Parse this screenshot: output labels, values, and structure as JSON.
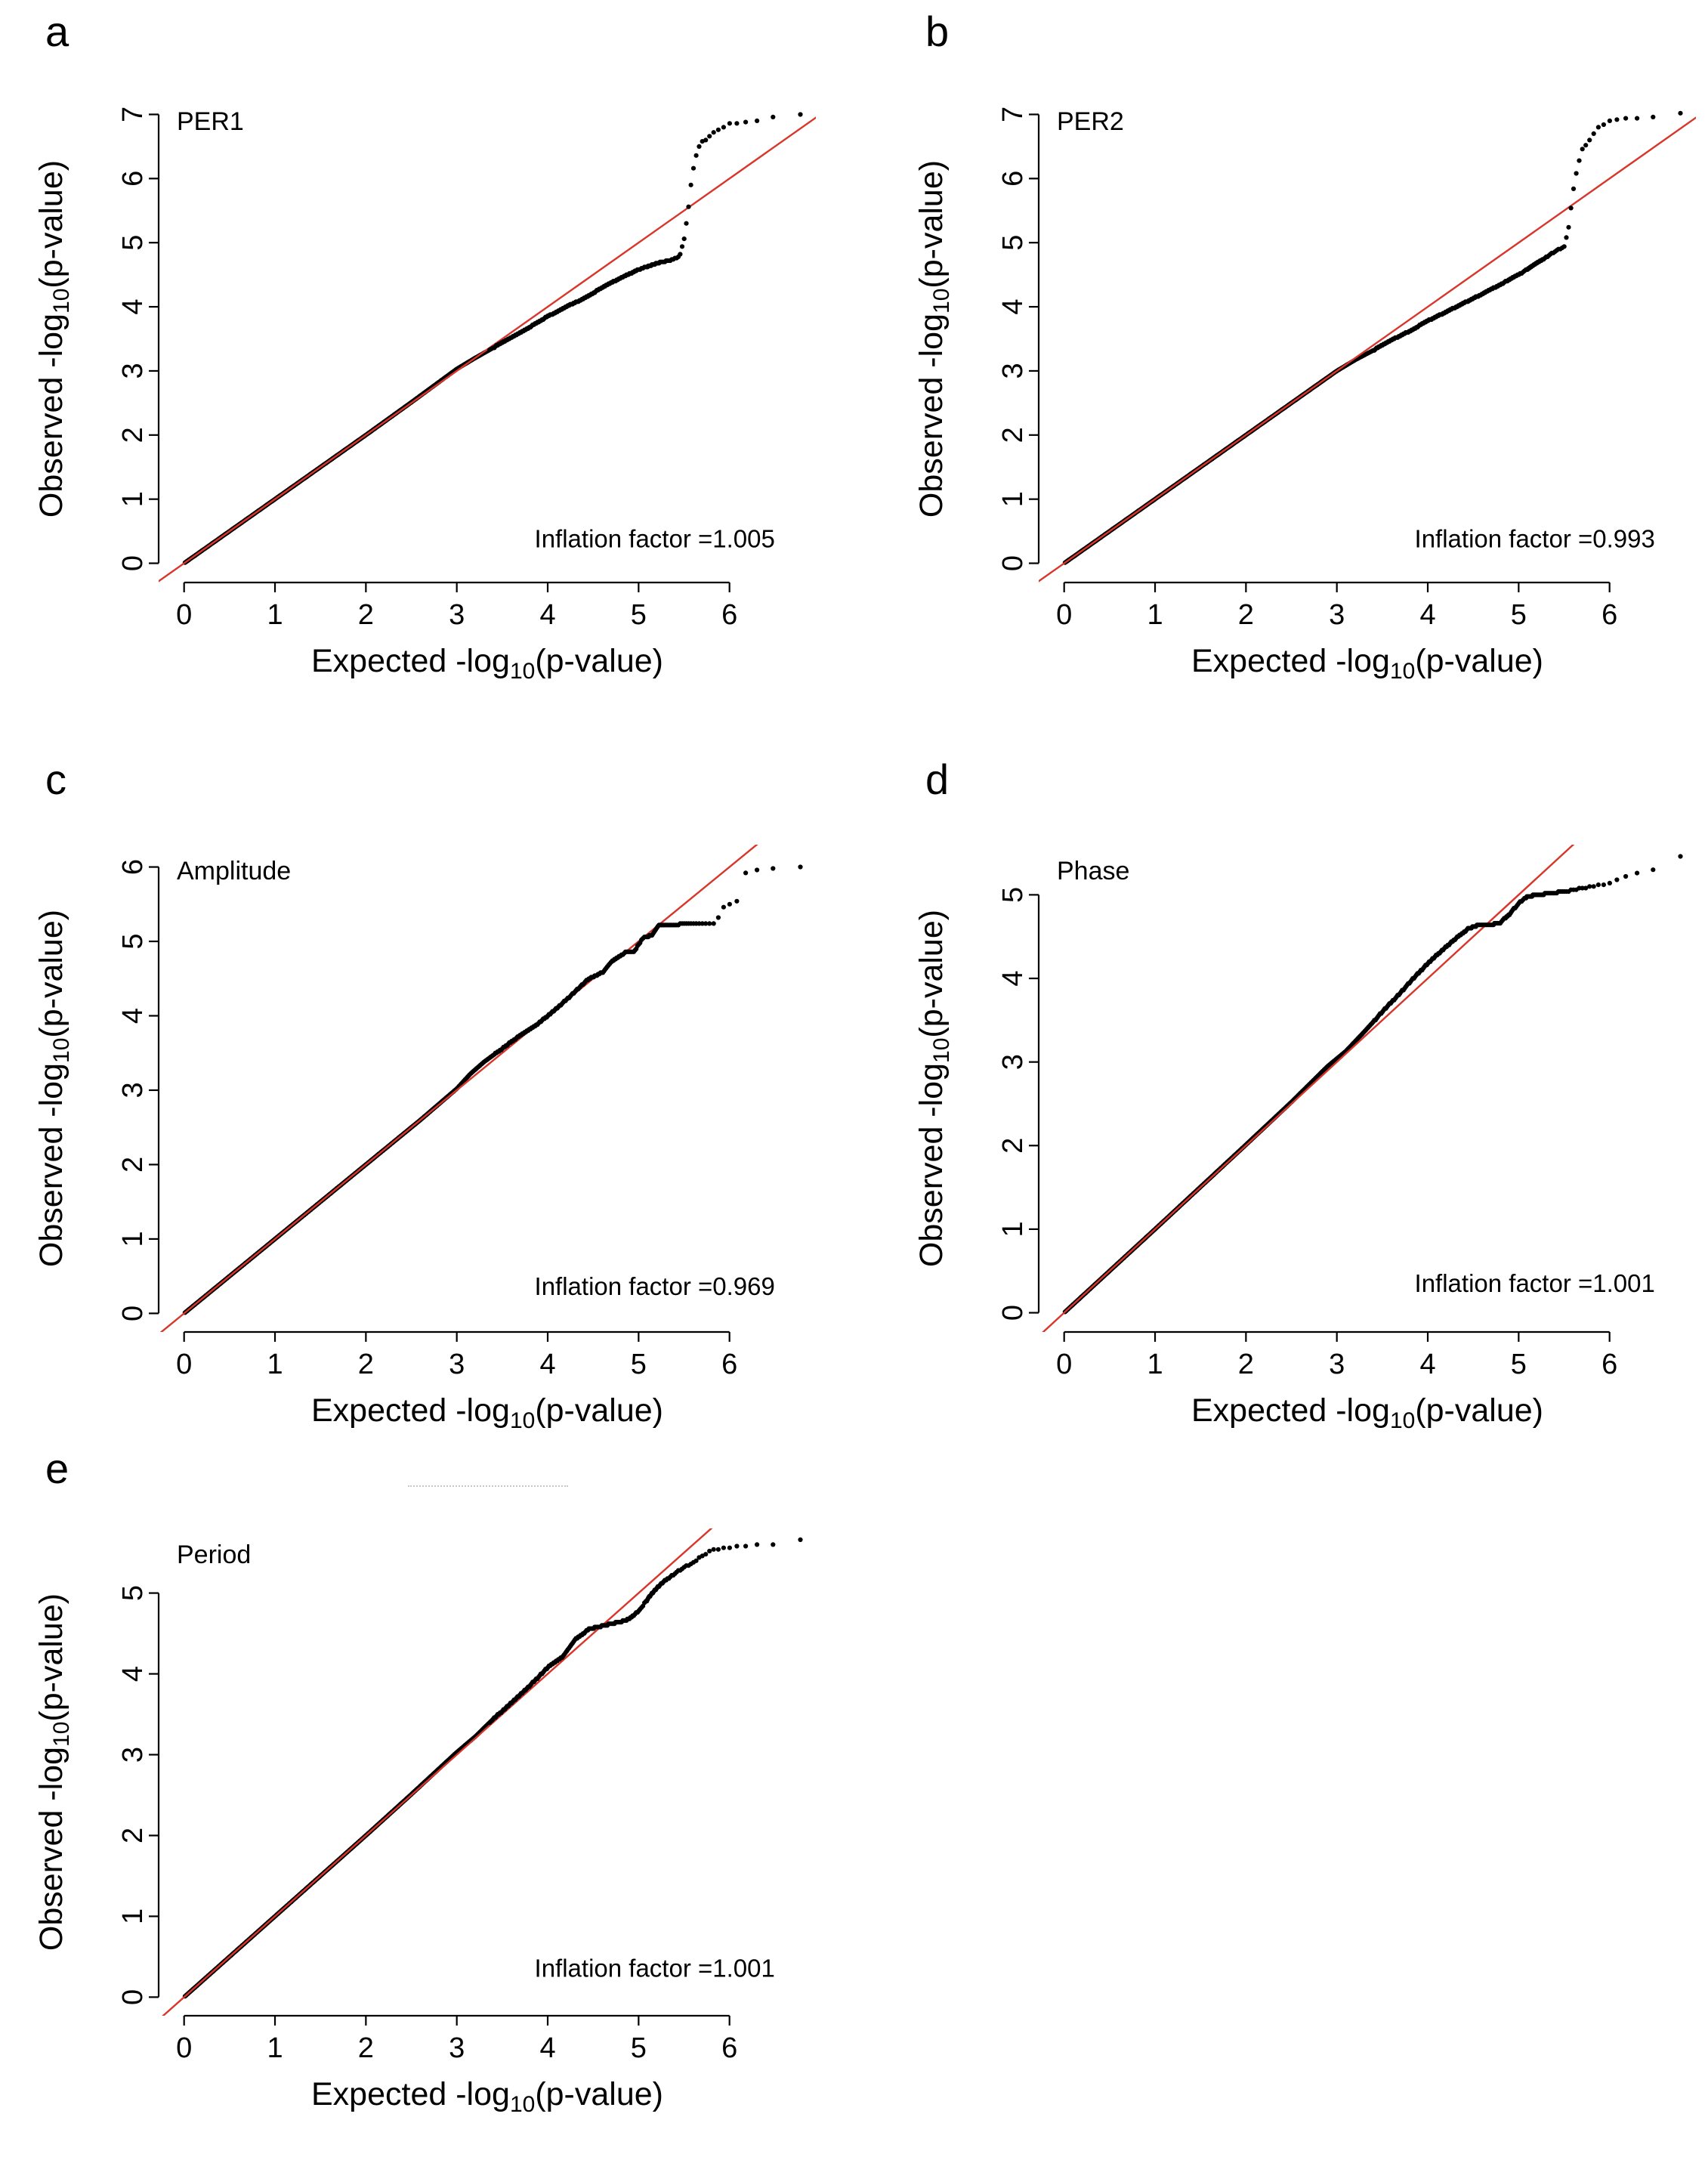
{
  "figure": {
    "background": "#ffffff",
    "identity_line_color": "#d8362a",
    "point_color": "#000000",
    "axis_color": "#000000"
  },
  "labels": {
    "xlabel": {
      "pre": "Expected -log",
      "sub": "10",
      "post": "(p-value)",
      "plain": "Expected -log10(p-value)"
    },
    "ylabel": {
      "pre": "Observed -log",
      "sub": "10",
      "post": "(p-value)",
      "plain": "Observed -log10(p-value)"
    }
  },
  "chart_data": [
    {
      "id": "a",
      "type": "scatter",
      "panel_letter": "a",
      "title": "PER1",
      "inflation_label": "Inflation factor =1.005",
      "xlabel": "Expected -log10(p-value)",
      "ylabel": "Observed -log10(p-value)",
      "grid": false,
      "legend": "none",
      "xlim": [
        -0.28,
        6.95
      ],
      "ylim": [
        -0.3,
        7.3
      ],
      "xticks": [
        0,
        1,
        2,
        3,
        4,
        5,
        6
      ],
      "yticks": [
        0,
        1,
        2,
        3,
        4,
        5,
        6,
        7
      ],
      "max_expected": 6.78,
      "curve": [
        [
          0,
          0
        ],
        [
          0.5,
          0.5
        ],
        [
          1,
          1.0
        ],
        [
          1.5,
          1.5
        ],
        [
          2,
          2.0
        ],
        [
          2.5,
          2.51
        ],
        [
          3,
          3.03
        ],
        [
          3.2,
          3.2
        ],
        [
          3.4,
          3.36
        ],
        [
          3.6,
          3.52
        ],
        [
          3.8,
          3.68
        ],
        [
          4.0,
          3.85
        ],
        [
          4.2,
          4.0
        ],
        [
          4.4,
          4.13
        ],
        [
          4.6,
          4.3
        ],
        [
          4.8,
          4.45
        ],
        [
          5.0,
          4.58
        ],
        [
          5.2,
          4.68
        ],
        [
          5.35,
          4.73
        ],
        [
          5.45,
          4.78
        ],
        [
          5.5,
          5.05
        ],
        [
          5.54,
          5.45
        ],
        [
          5.58,
          5.95
        ],
        [
          5.62,
          6.3
        ],
        [
          5.68,
          6.55
        ],
        [
          5.75,
          6.62
        ],
        [
          5.85,
          6.75
        ],
        [
          6.0,
          6.85
        ],
        [
          6.15,
          6.88
        ],
        [
          6.3,
          6.9
        ],
        [
          6.45,
          6.95
        ],
        [
          6.6,
          6.97
        ],
        [
          6.78,
          7.0
        ]
      ]
    },
    {
      "id": "b",
      "type": "scatter",
      "panel_letter": "b",
      "title": "PER2",
      "inflation_label": "Inflation factor =0.993",
      "xlabel": "Expected -log10(p-value)",
      "ylabel": "Observed -log10(p-value)",
      "grid": false,
      "legend": "none",
      "xlim": [
        -0.28,
        6.95
      ],
      "ylim": [
        -0.3,
        7.3
      ],
      "xticks": [
        0,
        1,
        2,
        3,
        4,
        5,
        6
      ],
      "yticks": [
        0,
        1,
        2,
        3,
        4,
        5,
        6,
        7
      ],
      "max_expected": 6.78,
      "curve": [
        [
          0,
          0
        ],
        [
          1,
          1
        ],
        [
          2,
          2
        ],
        [
          2.5,
          2.5
        ],
        [
          3,
          3.0
        ],
        [
          3.2,
          3.17
        ],
        [
          3.4,
          3.32
        ],
        [
          3.6,
          3.48
        ],
        [
          3.8,
          3.62
        ],
        [
          4.0,
          3.78
        ],
        [
          4.2,
          3.92
        ],
        [
          4.4,
          4.06
        ],
        [
          4.6,
          4.2
        ],
        [
          4.8,
          4.35
        ],
        [
          5.0,
          4.5
        ],
        [
          5.2,
          4.68
        ],
        [
          5.35,
          4.82
        ],
        [
          5.45,
          4.9
        ],
        [
          5.5,
          4.93
        ],
        [
          5.55,
          5.25
        ],
        [
          5.6,
          5.8
        ],
        [
          5.65,
          6.2
        ],
        [
          5.7,
          6.45
        ],
        [
          5.78,
          6.6
        ],
        [
          5.88,
          6.8
        ],
        [
          6.0,
          6.9
        ],
        [
          6.15,
          6.93
        ],
        [
          6.3,
          6.93
        ],
        [
          6.45,
          6.95
        ],
        [
          6.6,
          6.98
        ],
        [
          6.78,
          7.02
        ]
      ]
    },
    {
      "id": "c",
      "type": "scatter",
      "panel_letter": "c",
      "title": "Amplitude",
      "inflation_label": "Inflation factor =0.969",
      "xlabel": "Expected -log10(p-value)",
      "ylabel": "Observed -log10(p-value)",
      "grid": false,
      "legend": "none",
      "xlim": [
        -0.28,
        6.95
      ],
      "ylim": [
        -0.25,
        6.3
      ],
      "xticks": [
        0,
        1,
        2,
        3,
        4,
        5,
        6
      ],
      "yticks": [
        0,
        1,
        2,
        3,
        4,
        5,
        6
      ],
      "max_expected": 6.78,
      "curve": [
        [
          0,
          0
        ],
        [
          1,
          1
        ],
        [
          2,
          2
        ],
        [
          2.6,
          2.6
        ],
        [
          3.0,
          3.02
        ],
        [
          3.15,
          3.22
        ],
        [
          3.3,
          3.38
        ],
        [
          3.5,
          3.56
        ],
        [
          3.7,
          3.74
        ],
        [
          3.9,
          3.9
        ],
        [
          4.1,
          4.1
        ],
        [
          4.3,
          4.32
        ],
        [
          4.45,
          4.5
        ],
        [
          4.6,
          4.58
        ],
        [
          4.7,
          4.72
        ],
        [
          4.85,
          4.85
        ],
        [
          4.95,
          4.86
        ],
        [
          5.05,
          5.05
        ],
        [
          5.15,
          5.08
        ],
        [
          5.22,
          5.22
        ],
        [
          5.45,
          5.23
        ],
        [
          5.7,
          5.24
        ],
        [
          5.85,
          5.25
        ],
        [
          5.92,
          5.45
        ],
        [
          6.0,
          5.5
        ],
        [
          6.1,
          5.55
        ],
        [
          6.18,
          5.92
        ],
        [
          6.3,
          5.95
        ],
        [
          6.45,
          5.97
        ],
        [
          6.6,
          6.0
        ],
        [
          6.78,
          6.0
        ]
      ]
    },
    {
      "id": "d",
      "type": "scatter",
      "panel_letter": "d",
      "title": "Phase",
      "inflation_label": "Inflation factor =1.001",
      "xlabel": "Expected -log10(p-value)",
      "ylabel": "Observed -log10(p-value)",
      "grid": false,
      "legend": "none",
      "xlim": [
        -0.28,
        6.95
      ],
      "ylim": [
        -0.23,
        5.6
      ],
      "xticks": [
        0,
        1,
        2,
        3,
        4,
        5,
        6
      ],
      "yticks": [
        0,
        1,
        2,
        3,
        4,
        5
      ],
      "max_expected": 6.78,
      "curve": [
        [
          0,
          0
        ],
        [
          1,
          1
        ],
        [
          2,
          2.01
        ],
        [
          2.5,
          2.52
        ],
        [
          2.9,
          2.95
        ],
        [
          3.1,
          3.13
        ],
        [
          3.3,
          3.36
        ],
        [
          3.5,
          3.6
        ],
        [
          3.7,
          3.83
        ],
        [
          3.9,
          4.07
        ],
        [
          4.1,
          4.28
        ],
        [
          4.3,
          4.47
        ],
        [
          4.45,
          4.6
        ],
        [
          4.6,
          4.65
        ],
        [
          4.7,
          4.64
        ],
        [
          4.8,
          4.67
        ],
        [
          4.9,
          4.77
        ],
        [
          5.0,
          4.9
        ],
        [
          5.1,
          4.98
        ],
        [
          5.2,
          5.0
        ],
        [
          5.35,
          5.02
        ],
        [
          5.5,
          5.04
        ],
        [
          5.65,
          5.07
        ],
        [
          5.8,
          5.1
        ],
        [
          5.95,
          5.13
        ],
        [
          6.1,
          5.18
        ],
        [
          6.25,
          5.25
        ],
        [
          6.4,
          5.28
        ],
        [
          6.55,
          5.32
        ],
        [
          6.78,
          5.45
        ]
      ]
    },
    {
      "id": "e",
      "type": "scatter",
      "panel_letter": "e",
      "title": "Period",
      "inflation_label": "Inflation factor =1.001",
      "xlabel": "Expected -log10(p-value)",
      "ylabel": "Observed -log10(p-value)",
      "grid": false,
      "legend": "none",
      "xlim": [
        -0.28,
        6.95
      ],
      "ylim": [
        -0.23,
        5.8
      ],
      "xticks": [
        0,
        1,
        2,
        3,
        4,
        5,
        6
      ],
      "yticks": [
        0,
        1,
        2,
        3,
        4,
        5
      ],
      "max_expected": 6.78,
      "curve": [
        [
          0,
          0
        ],
        [
          1,
          1
        ],
        [
          2,
          2
        ],
        [
          2.5,
          2.51
        ],
        [
          3.0,
          3.03
        ],
        [
          3.2,
          3.22
        ],
        [
          3.4,
          3.44
        ],
        [
          3.6,
          3.64
        ],
        [
          3.8,
          3.85
        ],
        [
          4.0,
          4.08
        ],
        [
          4.15,
          4.2
        ],
        [
          4.3,
          4.42
        ],
        [
          4.45,
          4.55
        ],
        [
          4.55,
          4.58
        ],
        [
          4.7,
          4.62
        ],
        [
          4.85,
          4.66
        ],
        [
          4.95,
          4.72
        ],
        [
          5.05,
          4.85
        ],
        [
          5.15,
          5.0
        ],
        [
          5.25,
          5.12
        ],
        [
          5.35,
          5.2
        ],
        [
          5.45,
          5.28
        ],
        [
          5.55,
          5.35
        ],
        [
          5.65,
          5.42
        ],
        [
          5.78,
          5.52
        ],
        [
          5.92,
          5.56
        ],
        [
          6.1,
          5.58
        ],
        [
          6.3,
          5.6
        ],
        [
          6.5,
          5.6
        ],
        [
          6.78,
          5.65
        ]
      ]
    }
  ]
}
